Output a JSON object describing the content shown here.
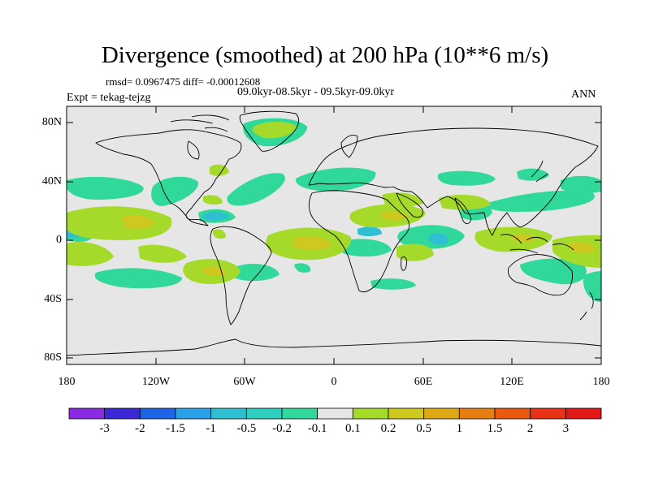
{
  "title": "Divergence (smoothed) at 200 hPa (10**6 m/s)",
  "stats_line": "rmsd= 0.0967475 diff= -0.00012608",
  "period_line": "09.0kyr-08.5kyr - 09.5kyr-09.0kyr",
  "experiment_line": "Expt = tekag-tejzg",
  "season": "ANN",
  "lat_ticks": [
    "80N",
    "40N",
    "0",
    "40S",
    "80S"
  ],
  "lon_ticks": [
    "180",
    "120W",
    "60W",
    "0",
    "60E",
    "120E",
    "180"
  ],
  "colorbar": {
    "labels": [
      "-3",
      "-2",
      "-1.5",
      "-1",
      "-0.5",
      "-0.2",
      "-0.1",
      "0.1",
      "0.2",
      "0.5",
      "1",
      "1.5",
      "2",
      "3"
    ],
    "colors": [
      "#8a2be2",
      "#3a28d6",
      "#1e64e6",
      "#2aa0e8",
      "#2fbed2",
      "#2fd0c0",
      "#30d89a",
      "#e6e6e6",
      "#a6da2a",
      "#cfc81e",
      "#dca816",
      "#e67e12",
      "#e85a10",
      "#e83216",
      "#e01818"
    ]
  },
  "colors": {
    "background": "#ffffff",
    "map_background": "#e6e6e6",
    "negative_small": "#30d89a",
    "negative_medium": "#2fbed2",
    "positive_small": "#a6da2a",
    "positive_medium": "#cfc81e"
  }
}
